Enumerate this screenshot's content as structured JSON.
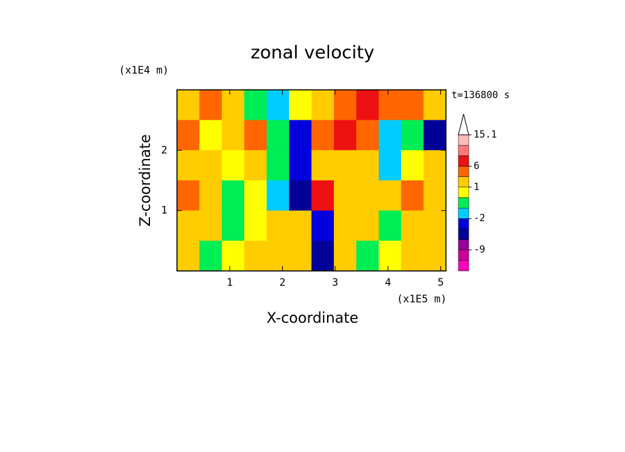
{
  "chart_data": {
    "type": "contour",
    "title": "zonal velocity",
    "x_label": "X-coordinate",
    "y_label": "Z-coordinate",
    "x_unit": "(x1E5 m)",
    "y_unit": "(x1E4 m)",
    "time_label": "t=136800 s",
    "xlim": [
      0,
      5.1
    ],
    "ylim": [
      0,
      3
    ],
    "xticks": [
      1,
      2,
      3,
      4,
      5
    ],
    "yticks": [
      1,
      2
    ],
    "levels": [
      -12,
      -9,
      -6,
      -4,
      -2,
      -1,
      0,
      1,
      3,
      6,
      9,
      12,
      15.1
    ],
    "colors": [
      "#ff00bb",
      "#cc0099",
      "#990099",
      "#000099",
      "#0000dd",
      "#00ccff",
      "#00ee55",
      "#ffff00",
      "#ffcc00",
      "#ff6600",
      "#ee1111",
      "#ff7777",
      "#ffbbbb",
      "#ffffff"
    ],
    "colorbar_ticks": [
      15.1,
      6,
      1,
      -2,
      -9
    ],
    "z": [
      [
        2,
        3,
        2,
        -1,
        -2,
        0,
        1,
        4,
        6,
        3,
        4,
        2
      ],
      [
        3,
        0,
        2,
        4,
        -1,
        -3,
        3,
        6,
        5,
        -2,
        -1,
        -6
      ],
      [
        2,
        2,
        0,
        1,
        -1,
        -4,
        2,
        2,
        1,
        -2,
        0,
        1
      ],
      [
        3,
        1,
        -1,
        0,
        -2,
        -5,
        6,
        2,
        2,
        2,
        3,
        1
      ],
      [
        2,
        1,
        -1,
        0,
        2,
        1,
        -4,
        2,
        1,
        -1,
        1,
        2
      ],
      [
        1,
        -1,
        0,
        2,
        1,
        2,
        -6,
        2,
        -1,
        0,
        1,
        2
      ]
    ]
  }
}
